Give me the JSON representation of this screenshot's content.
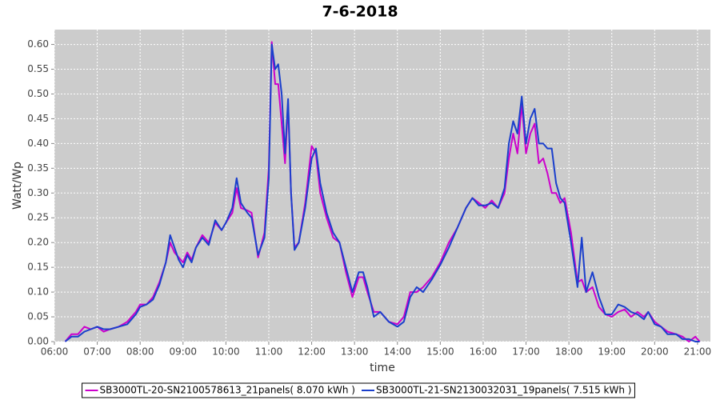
{
  "chart_data": {
    "type": "line",
    "title": "7-6-2018",
    "x_label": "time",
    "y_label": "Watt/Wp",
    "x": [
      6.25,
      6.4,
      6.55,
      6.7,
      6.85,
      7.0,
      7.15,
      7.3,
      7.5,
      7.7,
      7.9,
      8.0,
      8.15,
      8.3,
      8.45,
      8.6,
      8.7,
      8.8,
      8.9,
      9.0,
      9.1,
      9.2,
      9.3,
      9.45,
      9.6,
      9.75,
      9.9,
      10.0,
      10.15,
      10.25,
      10.35,
      10.5,
      10.6,
      10.75,
      10.9,
      11.0,
      11.07,
      11.15,
      11.22,
      11.3,
      11.38,
      11.45,
      11.52,
      11.6,
      11.7,
      11.85,
      12.0,
      12.1,
      12.2,
      12.35,
      12.5,
      12.65,
      12.8,
      12.95,
      13.1,
      13.2,
      13.3,
      13.45,
      13.6,
      13.8,
      14.0,
      14.15,
      14.3,
      14.45,
      14.6,
      14.8,
      15.0,
      15.2,
      15.4,
      15.6,
      15.75,
      15.9,
      16.05,
      16.2,
      16.35,
      16.5,
      16.6,
      16.7,
      16.8,
      16.9,
      17.0,
      17.1,
      17.2,
      17.3,
      17.4,
      17.5,
      17.6,
      17.7,
      17.8,
      17.9,
      18.05,
      18.2,
      18.3,
      18.4,
      18.55,
      18.7,
      18.85,
      19.0,
      19.15,
      19.3,
      19.45,
      19.6,
      19.75,
      19.85,
      20.0,
      20.15,
      20.3,
      20.5,
      20.65,
      20.8,
      20.95,
      21.05
    ],
    "series": [
      {
        "name": "SB3000TL-20-SN2100578613_21panels( 8.070 kWh )",
        "color": "#cc00cc",
        "values": [
          0,
          0.015,
          0.015,
          0.03,
          0.025,
          0.03,
          0.02,
          0.025,
          0.03,
          0.04,
          0.06,
          0.075,
          0.075,
          0.09,
          0.12,
          0.16,
          0.2,
          0.18,
          0.17,
          0.16,
          0.18,
          0.165,
          0.19,
          0.215,
          0.2,
          0.24,
          0.225,
          0.24,
          0.26,
          0.31,
          0.27,
          0.265,
          0.26,
          0.17,
          0.22,
          0.35,
          0.605,
          0.52,
          0.52,
          0.44,
          0.36,
          0.48,
          0.3,
          0.19,
          0.2,
          0.28,
          0.395,
          0.38,
          0.3,
          0.25,
          0.21,
          0.2,
          0.14,
          0.09,
          0.13,
          0.13,
          0.1,
          0.06,
          0.06,
          0.04,
          0.035,
          0.05,
          0.1,
          0.1,
          0.11,
          0.13,
          0.16,
          0.2,
          0.23,
          0.27,
          0.29,
          0.28,
          0.27,
          0.285,
          0.27,
          0.3,
          0.37,
          0.42,
          0.38,
          0.48,
          0.38,
          0.42,
          0.44,
          0.36,
          0.37,
          0.34,
          0.3,
          0.3,
          0.28,
          0.29,
          0.22,
          0.12,
          0.125,
          0.1,
          0.11,
          0.07,
          0.055,
          0.05,
          0.06,
          0.065,
          0.05,
          0.06,
          0.05,
          0.06,
          0.04,
          0.03,
          0.02,
          0.015,
          0.01,
          0,
          0.01,
          0
        ]
      },
      {
        "name": "SB3000TL-21-SN2130032031_19panels( 7.515 kWh )",
        "color": "#1a3fcc",
        "values": [
          0,
          0.01,
          0.01,
          0.02,
          0.025,
          0.03,
          0.025,
          0.025,
          0.03,
          0.035,
          0.055,
          0.07,
          0.075,
          0.085,
          0.115,
          0.16,
          0.215,
          0.19,
          0.165,
          0.15,
          0.175,
          0.16,
          0.19,
          0.21,
          0.195,
          0.245,
          0.225,
          0.24,
          0.27,
          0.33,
          0.28,
          0.26,
          0.25,
          0.175,
          0.21,
          0.33,
          0.6,
          0.55,
          0.56,
          0.5,
          0.38,
          0.49,
          0.3,
          0.185,
          0.2,
          0.27,
          0.37,
          0.39,
          0.32,
          0.26,
          0.22,
          0.2,
          0.15,
          0.1,
          0.14,
          0.14,
          0.11,
          0.05,
          0.06,
          0.04,
          0.03,
          0.04,
          0.09,
          0.11,
          0.1,
          0.125,
          0.155,
          0.19,
          0.23,
          0.27,
          0.29,
          0.275,
          0.275,
          0.28,
          0.27,
          0.31,
          0.4,
          0.445,
          0.42,
          0.495,
          0.4,
          0.45,
          0.47,
          0.4,
          0.4,
          0.39,
          0.39,
          0.32,
          0.29,
          0.28,
          0.2,
          0.11,
          0.21,
          0.1,
          0.14,
          0.09,
          0.055,
          0.055,
          0.075,
          0.07,
          0.06,
          0.055,
          0.045,
          0.06,
          0.035,
          0.03,
          0.015,
          0.015,
          0.005,
          0.005,
          0,
          0
        ]
      }
    ],
    "xlim": [
      6,
      21.3
    ],
    "xticks": [
      {
        "value": 6,
        "label": "06:00"
      },
      {
        "value": 7,
        "label": "07:00"
      },
      {
        "value": 8,
        "label": "08:00"
      },
      {
        "value": 9,
        "label": "09:00"
      },
      {
        "value": 10,
        "label": "10:00"
      },
      {
        "value": 11,
        "label": "11:00"
      },
      {
        "value": 12,
        "label": "12:00"
      },
      {
        "value": 13,
        "label": "13:00"
      },
      {
        "value": 14,
        "label": "14:00"
      },
      {
        "value": 15,
        "label": "15:00"
      },
      {
        "value": 16,
        "label": "16:00"
      },
      {
        "value": 17,
        "label": "17:00"
      },
      {
        "value": 18,
        "label": "18:00"
      },
      {
        "value": 19,
        "label": "19:00"
      },
      {
        "value": 20,
        "label": "20:00"
      },
      {
        "value": 21,
        "label": "21:00"
      }
    ],
    "ylim": [
      0,
      0.63
    ],
    "yticks": [
      {
        "value": 0,
        "label": "0.00"
      },
      0.05,
      {
        "value": 0.1,
        "label": "0.10"
      },
      0.15,
      {
        "value": 0.2,
        "label": "0.20"
      },
      0.25,
      {
        "value": 0.3,
        "label": "0.30"
      },
      0.35,
      {
        "value": 0.4,
        "label": "0.40"
      },
      0.45,
      {
        "value": 0.5,
        "label": "0.50"
      },
      0.55,
      {
        "value": 0.6,
        "label": "0.60"
      }
    ],
    "grid": true,
    "legend": "bottom"
  }
}
